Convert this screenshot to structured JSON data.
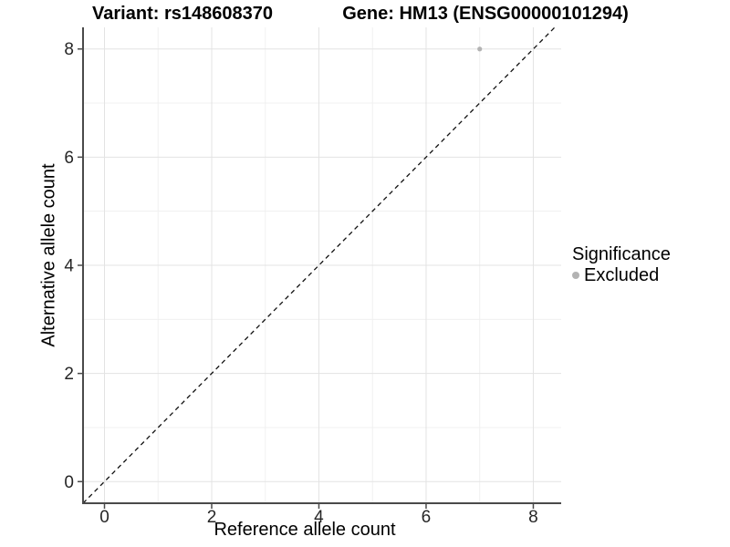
{
  "titles": {
    "variant": "Variant: rs148608370",
    "gene": "Gene: HM13 (ENSG00000101294)"
  },
  "legend": {
    "title": "Significance",
    "items": [
      {
        "label": "Excluded",
        "color": "#b3b3b3"
      }
    ]
  },
  "chart_data": {
    "type": "scatter",
    "title": "Variant: rs148608370 | Gene: HM13 (ENSG00000101294)",
    "xlabel": "Reference allele count",
    "ylabel": "Alternative allele count",
    "xlim": [
      -0.4,
      8.52
    ],
    "ylim": [
      -0.4,
      8.4
    ],
    "x_ticks": [
      0,
      2,
      4,
      6,
      8
    ],
    "y_ticks": [
      0,
      2,
      4,
      6,
      8
    ],
    "x_minor_ticks": [
      1,
      3,
      5,
      7
    ],
    "y_minor_ticks": [
      1,
      3,
      5,
      7
    ],
    "grid": "major+minor",
    "legend_position": "right",
    "series": [
      {
        "name": "Excluded",
        "color": "#b3b3b3",
        "points": [
          {
            "x": 7,
            "y": 8
          }
        ]
      }
    ],
    "reference_line": {
      "type": "identity",
      "slope": 1,
      "intercept": 0,
      "style": "dashed",
      "color": "#111111"
    }
  },
  "colors": {
    "background": "#ffffff",
    "grid_major": "#e3e3e3",
    "grid_minor": "#f0f0f0",
    "axis_line": "#4a4a4a",
    "tick_label": "#262626",
    "point": "#b3b3b3"
  }
}
